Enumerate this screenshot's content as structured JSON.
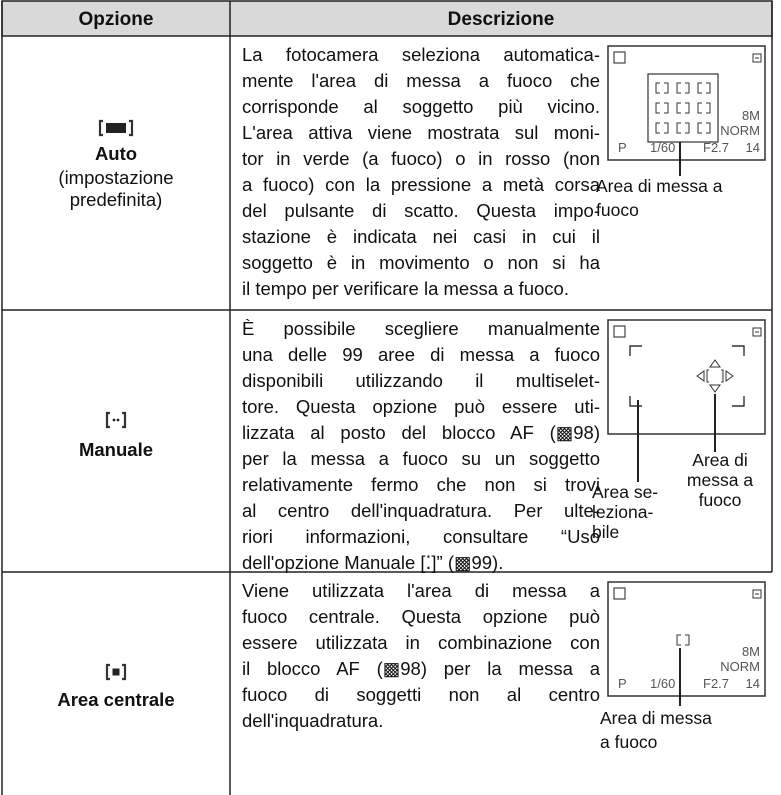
{
  "table": {
    "header": [
      "Opzione",
      "Descrizione"
    ],
    "rows": [
      {
        "option": "Auto",
        "note": [
          "(impostazione",
          "predefinita)"
        ],
        "description": [
          "La fotocamera seleziona automatica-",
          "mente l'area di messa a fuoco che",
          "corrisponde al soggetto più vicino.",
          "L'area attiva viene mostrata sul moni-",
          "tor in verde (a fuoco) o in rosso (non",
          "a fuoco) con la pressione a metà corsa",
          "del pulsante di scatto. Questa impo-",
          "stazione è indicata nei casi in cui il",
          "soggetto è in movimento o non si ha",
          "il tempo per verificare la messa a fuoco."
        ],
        "figure": {
          "screen": [
            "P",
            "1/60",
            "F2.7",
            "14",
            "8M",
            "NORM"
          ],
          "callouts": [
            [
              "Area di messa a",
              "fuoco"
            ]
          ]
        }
      },
      {
        "option": "Manuale",
        "description": [
          "È possibile scegliere manualmente",
          "una delle 99 aree di messa a fuoco",
          "disponibili utilizzando il multiselet-",
          "tore. Questa opzione può essere uti-",
          "lizzata al posto del blocco AF (▩98)",
          "per la messa a fuoco su un soggetto",
          "relativamente fermo che non si trovi",
          "al centro dell'inquadratura. Per ulte-",
          "riori informazioni, consultare “Uso",
          "dell'opzione Manuale [⁚]” (▩99)."
        ],
        "figure": {
          "callouts": [
            [
              "Area di",
              "messa a",
              "fuoco"
            ],
            [
              "Area se-",
              "leziona-",
              "bile"
            ]
          ]
        }
      },
      {
        "option": "Area centrale",
        "description": [
          "Viene utilizzata l'area di messa a",
          "fuoco centrale. Questa opzione può",
          "essere utilizzata in combinazione con",
          "il blocco AF (▩98) per la messa a",
          "fuoco di soggetti non al centro",
          "dell'inquadratura."
        ],
        "figure": {
          "screen": [
            "P",
            "1/60",
            "F2.7",
            "14",
            "8M",
            "NORM"
          ],
          "callouts": [
            [
              "Area di messa",
              "a fuoco"
            ]
          ]
        }
      }
    ]
  }
}
